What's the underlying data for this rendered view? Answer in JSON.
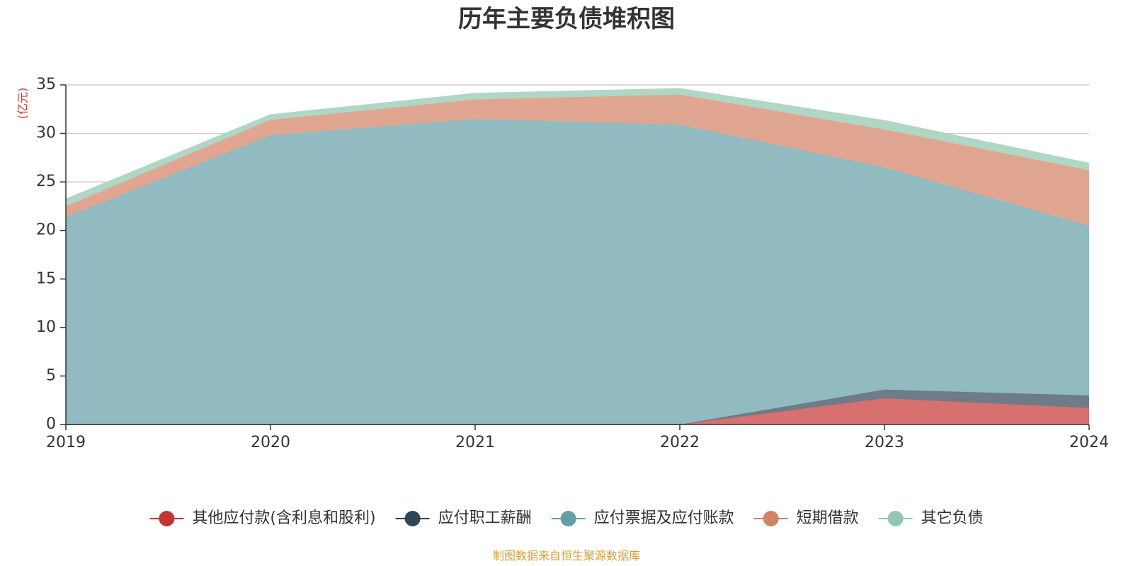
{
  "chart_data": {
    "type": "area",
    "title": "历年主要负债堆积图",
    "unit_label": "(亿元)",
    "x": [
      "2019",
      "2020",
      "2021",
      "2022",
      "2023",
      "2024"
    ],
    "ylim": [
      0,
      35
    ],
    "yticks": [
      0,
      5,
      10,
      15,
      20,
      25,
      30,
      35
    ],
    "grid": true,
    "stacked": true,
    "legend_position": "bottom",
    "series": [
      {
        "name": "其他应付款(含利息和股利)",
        "color": "#c23531",
        "fill": "#d7706e",
        "values": [
          0,
          0,
          0,
          0,
          2.7,
          1.7
        ]
      },
      {
        "name": "应付职工薪酬",
        "color": "#2f4554",
        "fill": "#6e7c87",
        "values": [
          0,
          0,
          0,
          0,
          0.9,
          1.3
        ]
      },
      {
        "name": "应付票据及应付账款",
        "color": "#61a0a8",
        "fill": "#91bbc1",
        "values": [
          21.4,
          29.8,
          31.5,
          30.9,
          22.9,
          17.5
        ]
      },
      {
        "name": "短期借款",
        "color": "#d48265",
        "fill": "#e1a691",
        "values": [
          1.1,
          1.6,
          2.0,
          3.1,
          3.9,
          5.7
        ]
      },
      {
        "name": "其它负债",
        "color": "#91c7ae",
        "fill": "#b0d6c4",
        "values": [
          0.7,
          0.5,
          0.6,
          0.6,
          0.9,
          0.7
        ]
      }
    ]
  },
  "footer": {
    "source": "制图数据来自恒生聚源数据库"
  }
}
